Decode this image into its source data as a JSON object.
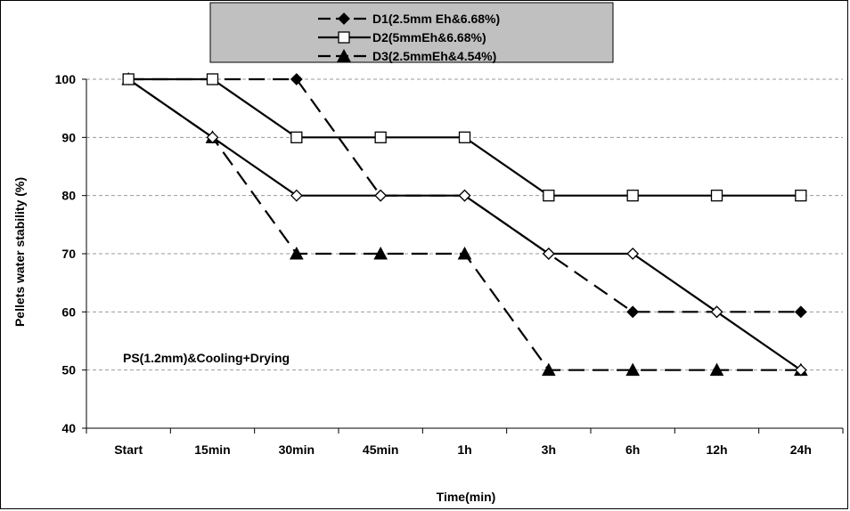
{
  "chart_data": {
    "type": "line",
    "categories": [
      "Start",
      "15min",
      "30min",
      "45min",
      "1h",
      "3h",
      "6h",
      "12h",
      "24h"
    ],
    "series": [
      {
        "name": "D1(2.5mm Eh&6.68%)",
        "values": [
          100,
          100,
          100,
          80,
          80,
          70,
          60,
          60,
          60
        ],
        "marker": "diamond-filled",
        "dash": "dashed",
        "color": "#000000"
      },
      {
        "name": "D2(5mmEh&6.68%)",
        "values": [
          100,
          100,
          90,
          90,
          90,
          80,
          80,
          80,
          80
        ],
        "marker": "square-open",
        "dash": "solid",
        "color": "#000000"
      },
      {
        "name": "D3(2.5mmEh&4.54%)",
        "values": [
          100,
          90,
          70,
          70,
          70,
          50,
          50,
          50,
          50
        ],
        "marker": "triangle-filled",
        "dash": "dashed",
        "color": "#000000"
      },
      {
        "name": "",
        "values": [
          100,
          90,
          80,
          80,
          80,
          70,
          70,
          60,
          50
        ],
        "marker": "diamond-open",
        "dash": "solid",
        "color": "#000000"
      }
    ],
    "xlabel": "Time(min)",
    "ylabel": "Pellets water stability  (%)",
    "ylim": [
      40,
      100
    ],
    "yticks": [
      40,
      50,
      60,
      70,
      80,
      90,
      100
    ],
    "grid": "horizontal dashed",
    "legend_position": "top",
    "legend_background": "#c0c0c0",
    "annotation": "PS(1.2mm)&Cooling+Drying"
  }
}
